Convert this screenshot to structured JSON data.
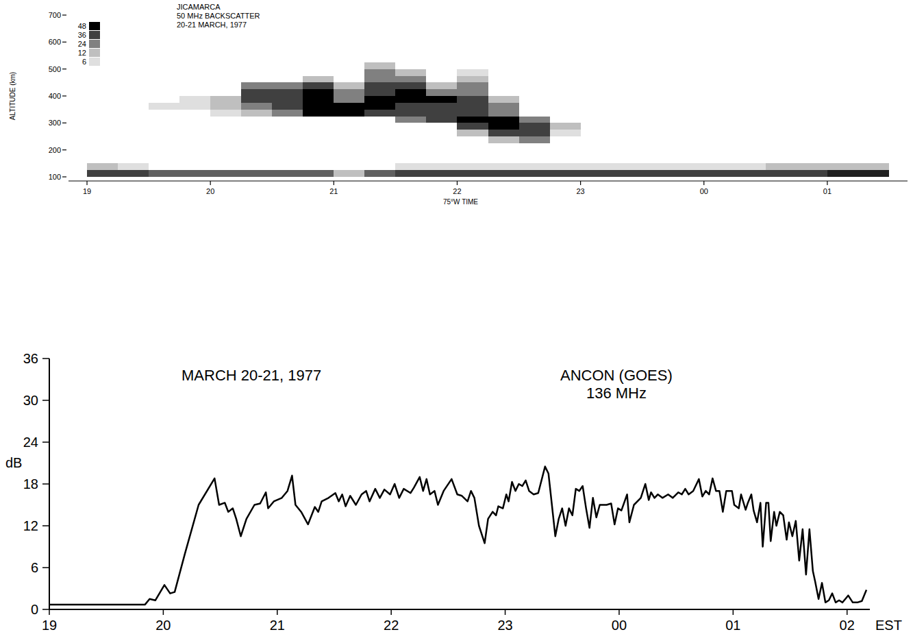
{
  "chart_data": [
    {
      "type": "heatmap",
      "title": "JICAMARCA",
      "subtitle": [
        "50 MHz BACKSCATTER",
        "20-21 MARCH, 1977"
      ],
      "xlabel": "75°W TIME",
      "ylabel": "ALTITUDE (km)",
      "xlim": [
        18.85,
        25.65
      ],
      "ylim": [
        100,
        700
      ],
      "xticks": [
        19,
        20,
        21,
        22,
        23,
        {
          "value": 24,
          "label": "00"
        },
        {
          "value": 25,
          "label": "01"
        }
      ],
      "yticks": [
        100,
        200,
        300,
        400,
        500,
        600,
        700
      ],
      "grid": false,
      "x_edges": [
        19,
        19.25,
        19.5,
        19.75,
        20,
        20.25,
        20.5,
        20.75,
        21,
        21.25,
        21.5,
        21.75,
        22,
        22.25,
        22.5,
        22.75,
        23,
        23.25,
        23.5,
        23.75,
        24,
        24.25,
        24.5,
        24.75,
        25,
        25.25,
        25.5
      ],
      "y_edges": [
        100,
        125,
        150,
        175,
        200,
        225,
        250,
        275,
        300,
        325,
        350,
        375,
        400,
        425,
        450,
        475,
        500,
        525,
        550
      ],
      "cells": [
        [
          36,
          36,
          30,
          30,
          30,
          30,
          30,
          30,
          12,
          30,
          36,
          36,
          36,
          36,
          36,
          36,
          36,
          36,
          36,
          36,
          36,
          36,
          36,
          36,
          42,
          42
        ],
        [
          12,
          6,
          0,
          0,
          0,
          0,
          0,
          0,
          0,
          0,
          6,
          6,
          6,
          6,
          6,
          6,
          6,
          6,
          6,
          6,
          6,
          6,
          12,
          12,
          12,
          12
        ],
        [
          0,
          0,
          0,
          0,
          0,
          0,
          0,
          0,
          0,
          0,
          0,
          0,
          0,
          0,
          0,
          0,
          0,
          0,
          0,
          0,
          0,
          0,
          0,
          0,
          0,
          0
        ],
        [
          0,
          0,
          0,
          0,
          0,
          0,
          0,
          0,
          0,
          0,
          0,
          0,
          0,
          0,
          0,
          0,
          0,
          0,
          0,
          0,
          0,
          0,
          0,
          0,
          0,
          0
        ],
        [
          0,
          0,
          0,
          0,
          0,
          0,
          0,
          0,
          0,
          0,
          0,
          0,
          0,
          0,
          0,
          0,
          0,
          0,
          0,
          0,
          0,
          0,
          0,
          0,
          0,
          0
        ],
        [
          0,
          0,
          0,
          0,
          0,
          0,
          0,
          0,
          0,
          0,
          0,
          0,
          0,
          12,
          24,
          0,
          0,
          0,
          0,
          0,
          0,
          0,
          0,
          0,
          0,
          0
        ],
        [
          0,
          0,
          0,
          0,
          0,
          0,
          0,
          0,
          0,
          0,
          0,
          0,
          12,
          36,
          36,
          6,
          0,
          0,
          0,
          0,
          0,
          0,
          0,
          0,
          0,
          0
        ],
        [
          0,
          0,
          0,
          0,
          0,
          0,
          0,
          0,
          0,
          0,
          0,
          0,
          36,
          48,
          36,
          12,
          0,
          0,
          0,
          0,
          0,
          0,
          0,
          0,
          0,
          0
        ],
        [
          0,
          0,
          0,
          0,
          0,
          0,
          0,
          0,
          0,
          0,
          24,
          36,
          48,
          48,
          24,
          0,
          0,
          0,
          0,
          0,
          0,
          0,
          0,
          0,
          0,
          0
        ],
        [
          0,
          0,
          0,
          0,
          6,
          12,
          24,
          48,
          48,
          36,
          36,
          36,
          36,
          24,
          0,
          0,
          0,
          0,
          0,
          0,
          0,
          0,
          0,
          0,
          0,
          0
        ],
        [
          0,
          0,
          6,
          6,
          12,
          24,
          36,
          48,
          48,
          48,
          36,
          36,
          36,
          24,
          0,
          0,
          0,
          0,
          0,
          0,
          0,
          0,
          0,
          0,
          0,
          0
        ],
        [
          0,
          0,
          0,
          6,
          12,
          36,
          36,
          48,
          24,
          48,
          48,
          48,
          36,
          12,
          0,
          0,
          0,
          0,
          0,
          0,
          0,
          0,
          0,
          0,
          0,
          0
        ],
        [
          0,
          0,
          0,
          0,
          0,
          36,
          36,
          48,
          24,
          36,
          48,
          24,
          24,
          0,
          0,
          0,
          0,
          0,
          0,
          0,
          0,
          0,
          0,
          0,
          0,
          0
        ],
        [
          0,
          0,
          0,
          0,
          0,
          24,
          24,
          36,
          12,
          36,
          36,
          12,
          24,
          0,
          0,
          0,
          0,
          0,
          0,
          0,
          0,
          0,
          0,
          0,
          0,
          0
        ],
        [
          0,
          0,
          0,
          0,
          0,
          0,
          0,
          12,
          0,
          24,
          24,
          0,
          12,
          0,
          0,
          0,
          0,
          0,
          0,
          0,
          0,
          0,
          0,
          0,
          0,
          0
        ],
        [
          0,
          0,
          0,
          0,
          0,
          0,
          0,
          0,
          0,
          24,
          12,
          0,
          6,
          0,
          0,
          0,
          0,
          0,
          0,
          0,
          0,
          0,
          0,
          0,
          0,
          0
        ],
        [
          0,
          0,
          0,
          0,
          0,
          0,
          0,
          0,
          0,
          12,
          0,
          0,
          0,
          0,
          0,
          0,
          0,
          0,
          0,
          0,
          0,
          0,
          0,
          0,
          0,
          0
        ],
        [
          0,
          0,
          0,
          0,
          0,
          0,
          0,
          0,
          0,
          0,
          0,
          0,
          0,
          0,
          0,
          0,
          0,
          0,
          0,
          0,
          0,
          0,
          0,
          0,
          0,
          0
        ]
      ],
      "colorbar": {
        "range": [
          0,
          48
        ],
        "ticks": [
          6,
          12,
          24,
          36,
          48
        ]
      }
    },
    {
      "type": "line",
      "title": "MARCH 20-21, 1977",
      "subtitle": [
        "ANCON (GOES)",
        "136 MHz"
      ],
      "xlabel": "EST",
      "ylabel": "dB",
      "xlim": [
        19,
        26.2
      ],
      "ylim": [
        0,
        36
      ],
      "xticks": [
        19,
        20,
        21,
        22,
        23,
        {
          "value": 24,
          "label": "00"
        },
        {
          "value": 25,
          "label": "01"
        },
        {
          "value": 26,
          "label": "02"
        }
      ],
      "yticks": [
        0,
        6,
        12,
        18,
        24,
        30,
        36
      ],
      "grid": false,
      "color": "#000000",
      "x": [
        19.0,
        19.84,
        19.88,
        19.93,
        20.01,
        20.06,
        20.1,
        20.19,
        20.31,
        20.45,
        20.49,
        20.54,
        20.57,
        20.61,
        20.64,
        20.68,
        20.73,
        20.8,
        20.85,
        20.9,
        20.92,
        20.97,
        21.04,
        21.09,
        21.13,
        21.16,
        21.21,
        21.27,
        21.33,
        21.36,
        21.39,
        21.45,
        21.51,
        21.54,
        21.57,
        21.6,
        21.64,
        21.69,
        21.74,
        21.78,
        21.81,
        21.86,
        21.9,
        21.94,
        21.99,
        22.03,
        22.07,
        22.11,
        22.17,
        22.2,
        22.25,
        22.28,
        22.31,
        22.34,
        22.38,
        22.41,
        22.46,
        22.53,
        22.58,
        22.62,
        22.67,
        22.7,
        22.73,
        22.77,
        22.82,
        22.85,
        22.89,
        22.92,
        22.94,
        22.98,
        23.01,
        23.03,
        23.06,
        23.09,
        23.12,
        23.15,
        23.18,
        23.21,
        23.25,
        23.29,
        23.35,
        23.38,
        23.41,
        23.44,
        23.47,
        23.5,
        23.53,
        23.56,
        23.59,
        23.62,
        23.65,
        23.68,
        23.71,
        23.74,
        23.77,
        23.8,
        23.83,
        23.89,
        23.93,
        23.96,
        23.99,
        24.02,
        24.07,
        24.09,
        24.13,
        24.19,
        24.23,
        24.26,
        24.28,
        24.31,
        24.34,
        24.38,
        24.43,
        24.47,
        24.52,
        24.55,
        24.58,
        24.61,
        24.65,
        24.7,
        24.73,
        24.76,
        24.79,
        24.82,
        24.85,
        24.88,
        24.91,
        24.94,
        24.99,
        25.01,
        25.05,
        25.07,
        25.11,
        25.13,
        25.16,
        25.18,
        25.21,
        25.24,
        25.26,
        25.29,
        25.31,
        25.33,
        25.36,
        25.38,
        25.41,
        25.44,
        25.47,
        25.49,
        25.52,
        25.55,
        25.58,
        25.61,
        25.64,
        25.67,
        25.7,
        25.72,
        25.75,
        25.78,
        25.81,
        25.84,
        25.87,
        25.9,
        25.93,
        25.96,
        26.01,
        26.05,
        26.09,
        26.13,
        26.17
      ],
      "values": [
        0.7,
        0.7,
        1.5,
        1.3,
        3.5,
        2.3,
        2.5,
        8,
        15,
        18.8,
        15,
        15.3,
        14,
        14.5,
        13,
        10.5,
        13,
        15,
        15.2,
        16.8,
        14.5,
        15.5,
        16,
        17,
        19.2,
        15,
        14,
        12.2,
        14.7,
        14,
        15.5,
        16,
        16.7,
        15.5,
        16.5,
        14.8,
        16.3,
        15,
        16.5,
        17,
        15.5,
        17.3,
        16,
        17.2,
        16.5,
        18,
        16,
        17.3,
        16.7,
        17.5,
        19,
        17,
        18.7,
        16.5,
        17,
        15,
        17,
        18.7,
        16.5,
        16.3,
        15.5,
        17,
        16,
        12,
        9.5,
        13,
        14,
        13.5,
        14.8,
        14.5,
        16.5,
        15.5,
        18.3,
        17,
        18,
        17.7,
        18.5,
        17,
        16.5,
        16.7,
        20.5,
        19.5,
        15,
        10.5,
        13,
        14.5,
        12,
        14.5,
        13.5,
        17.3,
        17,
        17.7,
        14.5,
        11.7,
        16,
        13.2,
        15,
        15,
        15.2,
        12.2,
        14.5,
        14.2,
        16.5,
        12.5,
        15,
        16,
        18,
        15.7,
        16.8,
        16,
        16.5,
        16,
        16.5,
        16,
        16.8,
        16.5,
        17.3,
        16.5,
        17,
        18.7,
        16.2,
        17,
        16.5,
        18.8,
        17,
        17,
        14,
        17,
        17,
        15,
        14.5,
        16.5,
        14.3,
        15.3,
        16.5,
        14.2,
        12.5,
        15.3,
        9,
        15.3,
        15.3,
        9.8,
        14,
        12,
        14,
        13.5,
        10,
        12.5,
        10.5,
        12.7,
        7,
        11.5,
        5,
        11.5,
        5.5,
        4,
        1.5,
        3.8,
        1,
        1.3,
        2.3,
        1,
        1.3,
        1,
        2,
        1,
        1,
        1.2,
        2.8
      ]
    }
  ]
}
